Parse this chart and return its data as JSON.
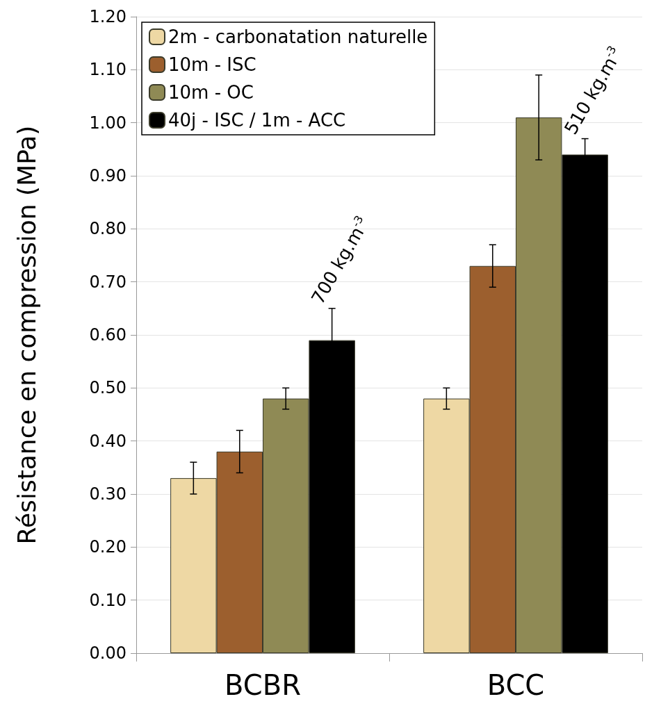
{
  "chart_data": {
    "type": "bar",
    "ylabel": "Résistance en compression (MPa)",
    "categories": [
      "BCBR",
      "BCC"
    ],
    "series": [
      {
        "name": "2m - carbonatation naturelle",
        "color": "#eed8a4",
        "values": [
          0.33,
          0.48
        ],
        "errors": [
          0.03,
          0.02
        ]
      },
      {
        "name": "10m - ISC",
        "color": "#9c5f2e",
        "values": [
          0.38,
          0.73
        ],
        "errors": [
          0.04,
          0.04
        ]
      },
      {
        "name": "10m - OC",
        "color": "#8f8a55",
        "values": [
          0.48,
          1.01
        ],
        "errors": [
          0.02,
          0.08
        ]
      },
      {
        "name": "40j - ISC / 1m - ACC",
        "color": "#000000",
        "values": [
          0.59,
          0.94
        ],
        "errors": [
          0.06,
          0.03
        ]
      }
    ],
    "annotations": [
      "700 kg.m$^{-3}$",
      "510 kg.m$^{-3}$"
    ],
    "ylim": [
      0,
      1.2
    ],
    "yticks": [
      {
        "value": 0,
        "label": "0.00"
      },
      {
        "value": 0.1,
        "label": "0.10"
      },
      {
        "value": 0.2,
        "label": "0.20"
      },
      {
        "value": 0.3,
        "label": "0.30"
      },
      {
        "value": 0.4,
        "label": "0.40"
      },
      {
        "value": 0.5,
        "label": "0.50"
      },
      {
        "value": 0.6,
        "label": "0.60"
      },
      {
        "value": 0.7,
        "label": "0.70"
      },
      {
        "value": 0.8,
        "label": "0.80"
      },
      {
        "value": 0.9,
        "label": "0.90"
      },
      {
        "value": 1.0,
        "label": "1.00"
      },
      {
        "value": 1.1,
        "label": "1.10"
      },
      {
        "value": 1.2,
        "label": "1.20"
      }
    ],
    "grid": "y",
    "legend": "top left"
  }
}
